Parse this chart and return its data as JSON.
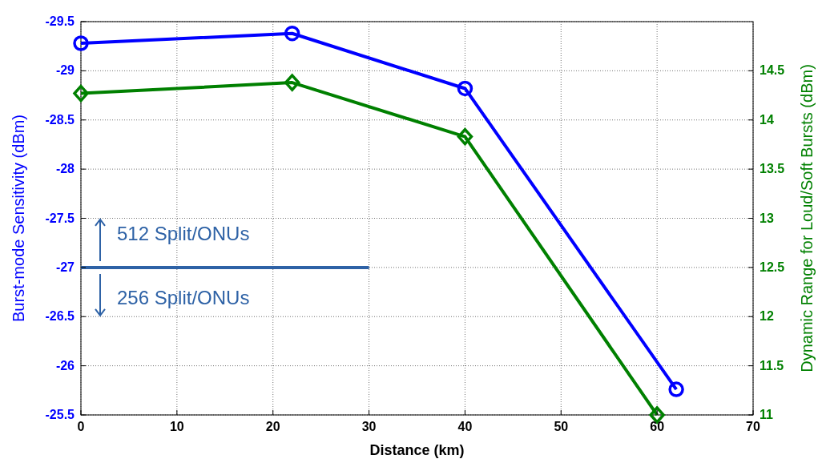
{
  "chart_data": {
    "type": "line",
    "xlabel": "Distance (km)",
    "ylabel": "Burst-mode Sensitivity (dBm)",
    "y2label": "Dynamic Range for Loud/Soft Bursts (dBm)",
    "xlim": [
      0,
      70
    ],
    "xticks": [
      0,
      10,
      20,
      30,
      40,
      50,
      60,
      70
    ],
    "ylim": [
      -25.5,
      -29.5
    ],
    "yticks": [
      -29.5,
      -29,
      -28.5,
      -28,
      -27.5,
      -27,
      -26.5,
      -26,
      -25.5
    ],
    "y2lim": [
      11,
      15
    ],
    "y2ticks": [
      11,
      11.5,
      12,
      12.5,
      13,
      13.5,
      14,
      14.5
    ],
    "grid": true,
    "line_style": "solid",
    "series": [
      {
        "color": "#0000ff",
        "marker": "circle",
        "x": [
          0,
          22,
          40,
          62
        ],
        "values": [
          -29.28,
          -29.38,
          -28.82,
          -25.76
        ]
      },
      {
        "color": "#008000",
        "marker": "diamond",
        "axis": "y2",
        "x": [
          0,
          22,
          40,
          60
        ],
        "values": [
          14.27,
          14.38,
          13.83,
          11.0
        ]
      },
      {
        "color": "#2e62a6",
        "marker": "none",
        "x": [
          0,
          30
        ],
        "values": [
          -27,
          -27
        ]
      }
    ],
    "annotations": [
      "512 Split/ONUs",
      "256 Split/ONUs"
    ]
  }
}
